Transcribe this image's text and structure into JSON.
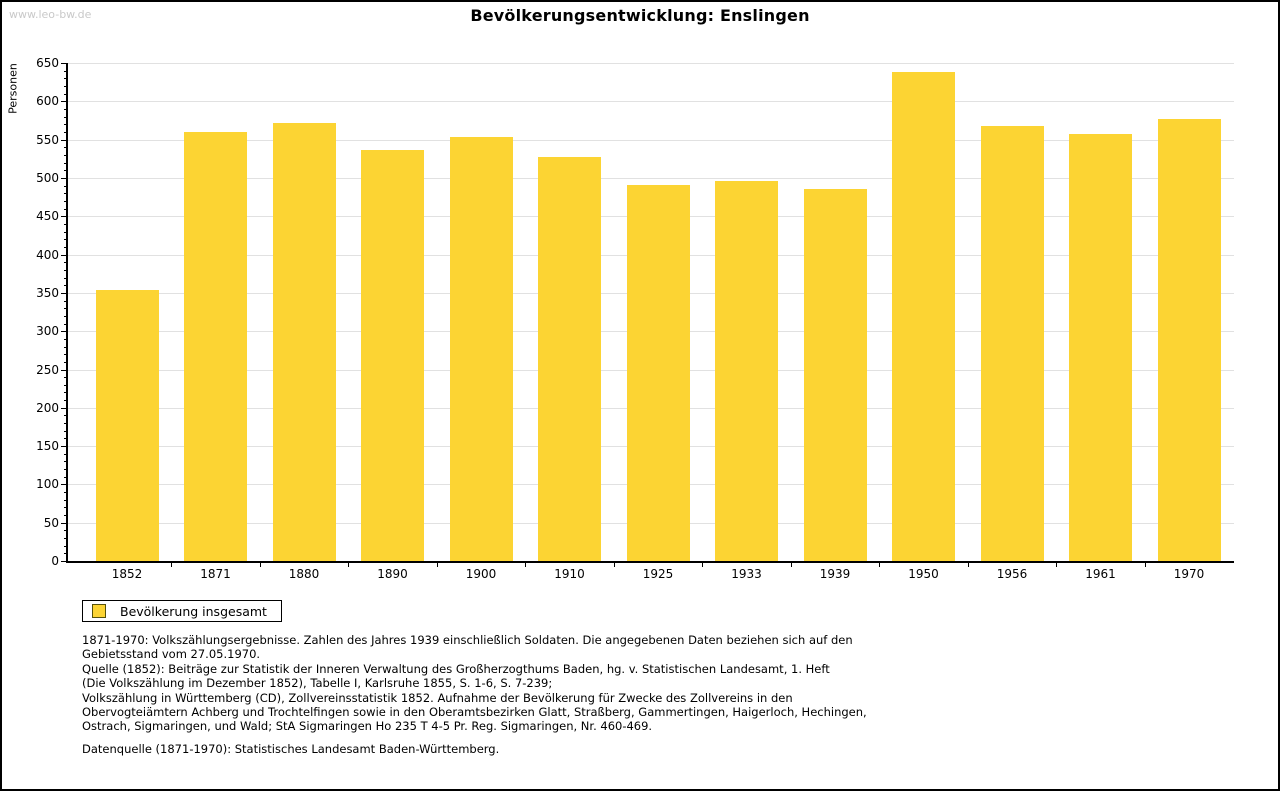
{
  "watermark": "www.leo-bw.de",
  "title": "Bevölkerungsentwicklung: Enslingen",
  "chart_data": {
    "type": "bar",
    "title": "Bevölkerungsentwicklung: Enslingen",
    "xlabel": "",
    "ylabel": "Personen",
    "categories": [
      "1852",
      "1871",
      "1880",
      "1890",
      "1900",
      "1910",
      "1925",
      "1933",
      "1939",
      "1950",
      "1956",
      "1961",
      "1970"
    ],
    "values": [
      354,
      560,
      572,
      536,
      553,
      528,
      491,
      496,
      486,
      638,
      568,
      558,
      577
    ],
    "ylim": [
      0,
      650
    ],
    "ytick_step": 50,
    "yminortick_step": 10,
    "grid": true,
    "bar_color": "#fcd433",
    "gridline_color": "#e1e1e1",
    "legend_position": "bottom-left"
  },
  "legend": {
    "label": "Bevölkerung insgesamt",
    "swatch_color": "#fcd433"
  },
  "footnotes": [
    "1871-1970: Volkszählungsergebnisse. Zahlen des Jahres 1939 einschließlich Soldaten. Die angegebenen Daten beziehen sich auf den",
    "Gebietsstand vom 27.05.1970.",
    "Quelle (1852): Beiträge zur Statistik der Inneren Verwaltung des Großherzogthums Baden, hg. v. Statistischen Landesamt, 1. Heft",
    "(Die Volkszählung im Dezember 1852), Tabelle I, Karlsruhe 1855, S. 1-6, S. 7-239;",
    "Volkszählung in Württemberg (CD), Zollvereinsstatistik 1852. Aufnahme der Bevölkerung für Zwecke des Zollvereins in den",
    "Obervogteiämtern Achberg und Trochtelfingen sowie in den Oberamtsbezirken Glatt, Straßberg, Gammertingen, Haigerloch, Hechingen,",
    "Ostrach, Sigmaringen, und Wald; StA Sigmaringen Ho 235 T 4-5 Pr. Reg. Sigmaringen, Nr. 460-469."
  ],
  "datasource": "Datenquelle (1871-1970): Statistisches Landesamt Baden-Württemberg."
}
